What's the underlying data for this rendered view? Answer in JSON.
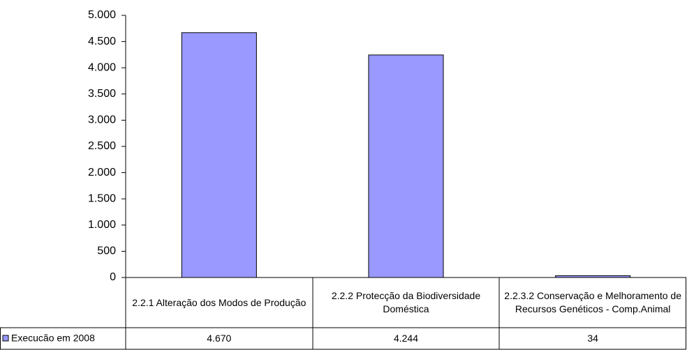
{
  "chart_data": {
    "type": "bar",
    "categories": [
      "2.2.1 Alteração dos Modos de Produção",
      "2.2.2 Protecção da Biodiversidade Doméstica",
      "2.2.3.2 Conservação e Melhoramento de Recursos Genéticos - Comp.Animal"
    ],
    "series": [
      {
        "name": "Execucão em 2008",
        "color": "#9999ff",
        "values": [
          4670,
          4244,
          34
        ],
        "value_labels": [
          "4.670",
          "4.244",
          "34"
        ]
      }
    ],
    "ylim": [
      0,
      5000
    ],
    "yticks": [
      0,
      500,
      {
        "value": 1000,
        "label": "1.000"
      },
      {
        "value": 1500,
        "label": "1.500"
      },
      {
        "value": 2000,
        "label": "2.000"
      },
      {
        "value": 2500,
        "label": "2.500"
      },
      {
        "value": 3000,
        "label": "3.000"
      },
      {
        "value": 3500,
        "label": "3.500"
      },
      {
        "value": 4000,
        "label": "4.000"
      },
      {
        "value": 4500,
        "label": "4.500"
      },
      {
        "value": 5000,
        "label": "5.000"
      }
    ],
    "grid": false,
    "data_table": true
  }
}
